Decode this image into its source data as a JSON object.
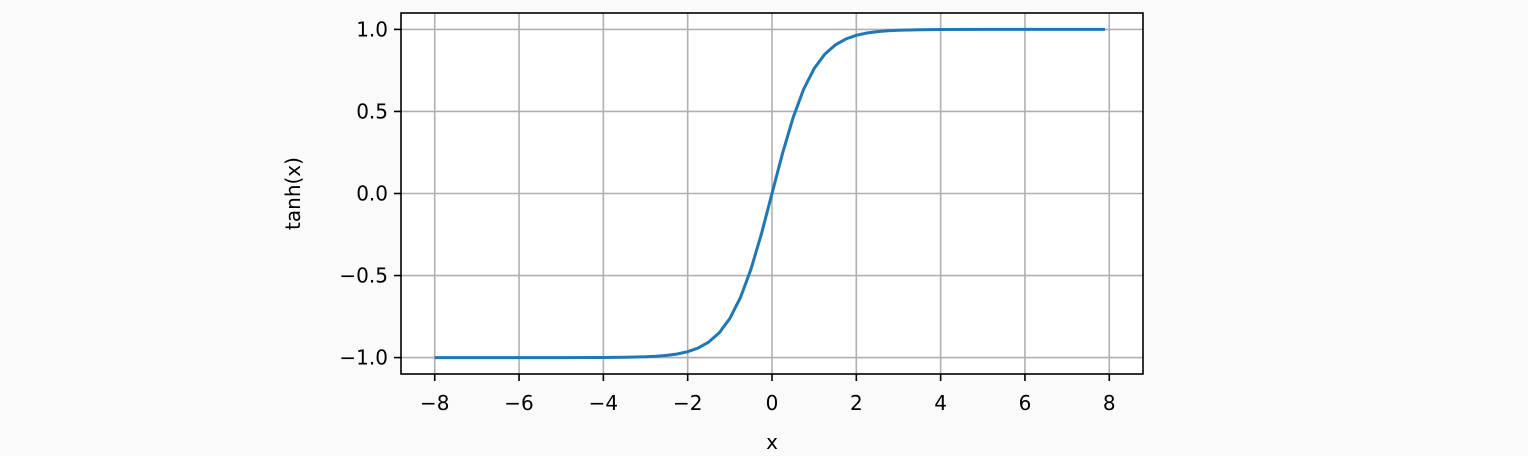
{
  "chart_data": {
    "type": "line",
    "title": "",
    "xlabel": "x",
    "ylabel": "tanh(x)",
    "xlim": [
      -8.8,
      8.8
    ],
    "ylim": [
      -1.1,
      1.1
    ],
    "grid": true,
    "legend": "none",
    "x_ticks": [
      -8,
      -6,
      -4,
      -2,
      0,
      2,
      4,
      6,
      8
    ],
    "x_tick_labels": [
      "−8",
      "−6",
      "−4",
      "−2",
      "0",
      "2",
      "4",
      "6",
      "8"
    ],
    "y_ticks": [
      -1.0,
      -0.5,
      0.0,
      0.5,
      1.0
    ],
    "y_tick_labels": [
      "−1.0",
      "−0.5",
      "0.0",
      "0.5",
      "1.0"
    ],
    "series": [
      {
        "color": "#1f77b4",
        "x": [
          -8,
          -7,
          -6,
          -5,
          -4,
          -3.5,
          -3,
          -2.75,
          -2.5,
          -2.25,
          -2,
          -1.75,
          -1.5,
          -1.25,
          -1,
          -0.75,
          -0.5,
          -0.25,
          0,
          0.25,
          0.5,
          0.75,
          1,
          1.25,
          1.5,
          1.75,
          2,
          2.25,
          2.5,
          2.75,
          3,
          3.5,
          4,
          5,
          6,
          7,
          7.9
        ],
        "y": [
          -1.0,
          -1.0,
          -1.0,
          -0.9999,
          -0.9993,
          -0.9982,
          -0.9951,
          -0.9918,
          -0.9866,
          -0.978,
          -0.964,
          -0.9414,
          -0.9051,
          -0.8483,
          -0.7616,
          -0.6351,
          -0.4621,
          -0.2449,
          0.0,
          0.2449,
          0.4621,
          0.6351,
          0.7616,
          0.8483,
          0.9051,
          0.9414,
          0.964,
          0.978,
          0.9866,
          0.9918,
          0.9951,
          0.9982,
          0.9993,
          0.9999,
          1.0,
          1.0,
          1.0
        ]
      }
    ],
    "colors": {
      "grid": "#b0b0b0",
      "axes": "#000000",
      "background": "#ffffff",
      "page": "#fafafa"
    }
  }
}
